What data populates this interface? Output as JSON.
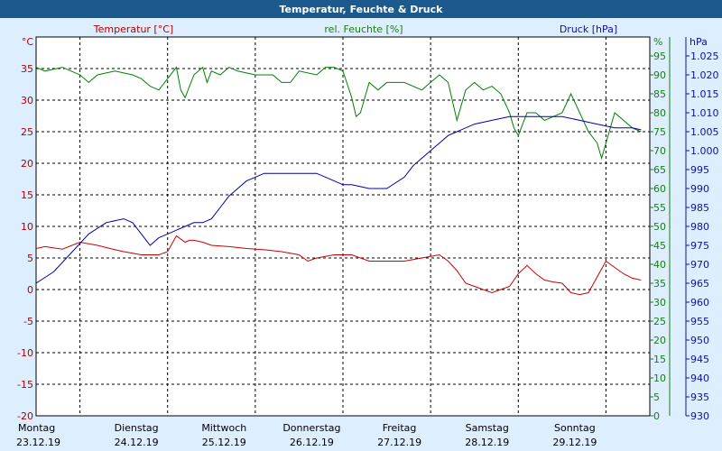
{
  "window": {
    "title": "Temperatur, Feuchte & Druck"
  },
  "colors": {
    "background": "#ddeeff",
    "plot_bg": "#ffffff",
    "titlebar": "#1c5a8d",
    "temperature": "#cc0000",
    "humidity": "#008000",
    "pressure": "#0000aa"
  },
  "chart_data": {
    "type": "line",
    "title": "Temperatur, Feuchte & Druck",
    "grid": true,
    "x_range": [
      0,
      7
    ],
    "days": [
      {
        "name": "Montag",
        "date": "23.12.19"
      },
      {
        "name": "Dienstag",
        "date": "24.12.19"
      },
      {
        "name": "Mittwoch",
        "date": "25.12.19"
      },
      {
        "name": "Donnerstag",
        "date": "26.12.19"
      },
      {
        "name": "Freitag",
        "date": "27.12.19"
      },
      {
        "name": "Samstag",
        "date": "28.12.19"
      },
      {
        "name": "Sonntag",
        "date": "29.12.19"
      }
    ],
    "axes": {
      "left": {
        "label": "Temperatur [°C]",
        "unit": "°C",
        "range": [
          -20,
          40
        ],
        "ticks": [
          "-20",
          "-15",
          "-10",
          "-5",
          "0",
          "5",
          "10",
          "15",
          "20",
          "25",
          "30",
          "35"
        ]
      },
      "right1": {
        "label": "rel. Feuchte [%]",
        "unit": "%",
        "range": [
          0,
          100
        ],
        "ticks": [
          "0",
          "5",
          "10",
          "15",
          "20",
          "25",
          "30",
          "35",
          "40",
          "45",
          "50",
          "55",
          "60",
          "65",
          "70",
          "75",
          "80",
          "85",
          "90",
          "95"
        ]
      },
      "right2": {
        "label": "Druck [hPa]",
        "unit": "hPa",
        "range": [
          930,
          1030
        ],
        "ticks": [
          "930",
          "935",
          "940",
          "945",
          "950",
          "955",
          "960",
          "965",
          "970",
          "975",
          "980",
          "985",
          "990",
          "995",
          "1.000",
          "1.005",
          "1.010",
          "1.015",
          "1.020",
          "1.025"
        ],
        "tick_values": [
          930,
          935,
          940,
          945,
          950,
          955,
          960,
          965,
          970,
          975,
          980,
          985,
          990,
          995,
          1000,
          1005,
          1010,
          1015,
          1020,
          1025
        ]
      }
    },
    "series": [
      {
        "name": "Temperatur [°C]",
        "axis": "left",
        "x": [
          0,
          0.1,
          0.3,
          0.5,
          0.7,
          0.9,
          1.0,
          1.2,
          1.4,
          1.5,
          1.6,
          1.7,
          1.75,
          1.8,
          1.9,
          2.0,
          2.2,
          2.4,
          2.6,
          2.8,
          3.0,
          3.1,
          3.2,
          3.4,
          3.5,
          3.6,
          3.8,
          4.0,
          4.2,
          4.4,
          4.6,
          4.7,
          4.8,
          4.9,
          5.0,
          5.1,
          5.2,
          5.4,
          5.5,
          5.6,
          5.7,
          5.8,
          5.9,
          6.0,
          6.1,
          6.2,
          6.3,
          6.4,
          6.5,
          6.6,
          6.7,
          6.8,
          6.9
        ],
        "values": [
          6.5,
          6.8,
          6.4,
          7.5,
          7.0,
          6.3,
          6.0,
          5.5,
          5.5,
          6.0,
          8.5,
          7.5,
          7.8,
          7.8,
          7.5,
          7.0,
          6.8,
          6.5,
          6.3,
          6.0,
          5.5,
          4.5,
          5.0,
          5.5,
          5.5,
          5.5,
          4.5,
          4.5,
          4.5,
          5.0,
          5.5,
          4.5,
          3.0,
          1.0,
          0.5,
          0.0,
          -0.5,
          0.5,
          2.5,
          3.8,
          2.5,
          1.5,
          1.2,
          1.0,
          -0.5,
          -0.8,
          -0.5,
          2.0,
          4.5,
          3.5,
          2.5,
          1.8,
          1.5
        ]
      },
      {
        "name": "rel. Feuchte [%]",
        "axis": "right1",
        "x": [
          0,
          0.1,
          0.3,
          0.5,
          0.6,
          0.7,
          0.9,
          1.1,
          1.2,
          1.3,
          1.4,
          1.5,
          1.6,
          1.65,
          1.7,
          1.8,
          1.9,
          1.95,
          2.0,
          2.1,
          2.2,
          2.3,
          2.5,
          2.7,
          2.8,
          2.9,
          3.0,
          3.2,
          3.3,
          3.4,
          3.5,
          3.6,
          3.65,
          3.7,
          3.8,
          3.9,
          4.0,
          4.2,
          4.4,
          4.5,
          4.6,
          4.7,
          4.75,
          4.8,
          4.9,
          5.0,
          5.1,
          5.2,
          5.3,
          5.4,
          5.45,
          5.5,
          5.6,
          5.7,
          5.8,
          6.0,
          6.1,
          6.2,
          6.3,
          6.4,
          6.45,
          6.5,
          6.6,
          6.7,
          6.8,
          6.9
        ],
        "values": [
          92,
          91,
          92,
          90,
          88,
          90,
          91,
          90,
          89,
          87,
          86,
          89,
          92,
          86,
          84,
          90,
          92,
          88,
          91,
          90,
          92,
          91,
          90,
          90,
          88,
          88,
          91,
          90,
          92,
          92,
          91,
          84,
          79,
          80,
          88,
          86,
          88,
          88,
          86,
          88,
          90,
          88,
          83,
          78,
          86,
          88,
          86,
          87,
          85,
          80,
          76,
          74,
          80,
          80,
          78,
          80,
          85,
          80,
          75,
          72,
          68,
          72,
          80,
          78,
          76,
          75
        ]
      },
      {
        "name": "Druck [hPa]",
        "axis": "right2",
        "x": [
          0,
          0.2,
          0.4,
          0.6,
          0.8,
          1.0,
          1.1,
          1.2,
          1.3,
          1.4,
          1.5,
          1.6,
          1.7,
          1.8,
          1.9,
          2.0,
          2.1,
          2.2,
          2.3,
          2.4,
          2.5,
          2.6,
          2.7,
          2.8,
          2.9,
          3.0,
          3.2,
          3.4,
          3.5,
          3.6,
          3.8,
          4.0,
          4.2,
          4.3,
          4.4,
          4.5,
          4.6,
          4.7,
          4.8,
          5.0,
          5.2,
          5.4,
          5.6,
          5.8,
          6.0,
          6.2,
          6.4,
          6.6,
          6.8,
          6.9
        ],
        "values": [
          965,
          968,
          973,
          978,
          981,
          982,
          981,
          978,
          975,
          977,
          978,
          979,
          980,
          981,
          981,
          982,
          985,
          988,
          990,
          992,
          993,
          994,
          994,
          994,
          994,
          994,
          994,
          992,
          991,
          991,
          990,
          990,
          993,
          996,
          998,
          1000,
          1002,
          1004,
          1005,
          1007,
          1008,
          1009,
          1009,
          1009,
          1009,
          1008,
          1007,
          1006,
          1006,
          1005.5
        ]
      }
    ]
  }
}
